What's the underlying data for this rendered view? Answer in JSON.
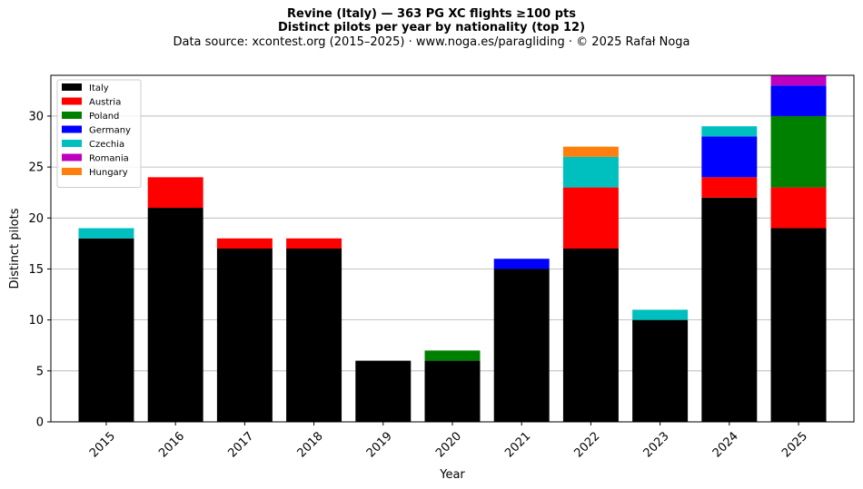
{
  "chart_data": {
    "type": "bar",
    "stacked": true,
    "title_line1": "Revine (Italy)  —  363 PG XC flights ≥100 pts",
    "title_line2": "Distinct pilots per year by nationality (top 12)",
    "subtitle": "Data source: xcontest.org (2015–2025)  ·  www.noga.es/paragliding  ·  © 2025 Rafał Noga",
    "xlabel": "Year",
    "ylabel": "Distinct pilots",
    "ylim": [
      0,
      34
    ],
    "yticks": [
      0,
      5,
      10,
      15,
      20,
      25,
      30
    ],
    "grid": "horizontal",
    "legend_position": "top-left",
    "categories": [
      "2015",
      "2016",
      "2017",
      "2018",
      "2019",
      "2020",
      "2021",
      "2022",
      "2023",
      "2024",
      "2025"
    ],
    "series": [
      {
        "name": "Italy",
        "color": "#000000",
        "values": [
          18,
          21,
          17,
          17,
          6,
          6,
          15,
          17,
          10,
          22,
          19
        ]
      },
      {
        "name": "Austria",
        "color": "#ff0000",
        "values": [
          0,
          3,
          1,
          1,
          0,
          0,
          0,
          6,
          0,
          2,
          4
        ]
      },
      {
        "name": "Poland",
        "color": "#008000",
        "values": [
          0,
          0,
          0,
          0,
          0,
          1,
          0,
          0,
          0,
          0,
          7
        ]
      },
      {
        "name": "Germany",
        "color": "#0000ff",
        "values": [
          0,
          0,
          0,
          0,
          0,
          0,
          1,
          0,
          0,
          4,
          3
        ]
      },
      {
        "name": "Czechia",
        "color": "#00bfbf",
        "values": [
          1,
          0,
          0,
          0,
          0,
          0,
          0,
          3,
          1,
          1,
          0
        ]
      },
      {
        "name": "Romania",
        "color": "#bf00bf",
        "values": [
          0,
          0,
          0,
          0,
          0,
          0,
          0,
          0,
          0,
          0,
          1
        ]
      },
      {
        "name": "Hungary",
        "color": "#ff7f0e",
        "values": [
          0,
          0,
          0,
          0,
          0,
          0,
          0,
          1,
          0,
          0,
          0
        ]
      }
    ]
  }
}
